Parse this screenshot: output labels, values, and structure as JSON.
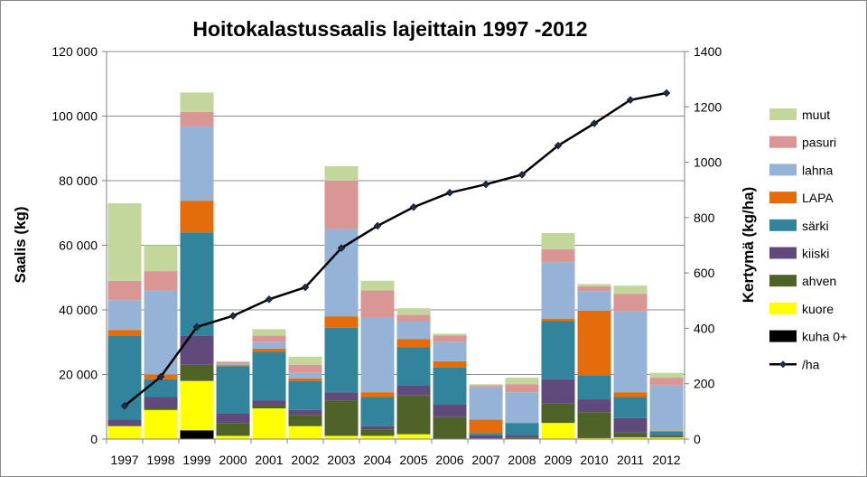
{
  "chart_data": {
    "type": "bar",
    "stacked": true,
    "title": "Hoitokalastussaalis lajeittain 1997 -2012",
    "ylabel": "Saalis (kg)",
    "y2label": "Kertymä (kg/ha)",
    "categories": [
      "1997",
      "1998",
      "1999",
      "2000",
      "2001",
      "2002",
      "2003",
      "2004",
      "2005",
      "2006",
      "2007",
      "2008",
      "2009",
      "2010",
      "2011",
      "2012"
    ],
    "ylim": [
      0,
      120000
    ],
    "y2lim": [
      0,
      1400
    ],
    "yticks": [
      "0",
      "20 000",
      "40 000",
      "60 000",
      "80 000",
      "100 000",
      "120 000"
    ],
    "y2ticks": [
      "0",
      "200",
      "400",
      "600",
      "800",
      "1000",
      "1200",
      "1400"
    ],
    "grid": true,
    "legend_position": "right",
    "series": [
      {
        "name": "kuha 0+",
        "color": "#000000",
        "values": [
          0,
          0,
          2700,
          0,
          0,
          0,
          0,
          0,
          0,
          0,
          0,
          0,
          0,
          0,
          0,
          0
        ]
      },
      {
        "name": "kuore",
        "color": "#ffff00",
        "values": [
          4000,
          9000,
          15300,
          1000,
          9500,
          4000,
          1000,
          1000,
          1500,
          0,
          0,
          0,
          5000,
          300,
          500,
          500
        ]
      },
      {
        "name": "ahven",
        "color": "#4f6228",
        "values": [
          0,
          500,
          5000,
          4000,
          1000,
          3500,
          11000,
          2000,
          12000,
          6800,
          200,
          500,
          6000,
          8000,
          1500,
          500
        ]
      },
      {
        "name": "kiiski",
        "color": "#604a7b",
        "values": [
          2000,
          3500,
          9000,
          3000,
          1500,
          1500,
          2500,
          1000,
          3000,
          4000,
          1000,
          800,
          7500,
          4000,
          4500,
          300
        ]
      },
      {
        "name": "särki",
        "color": "#31849b",
        "values": [
          26000,
          5500,
          32000,
          14500,
          15000,
          9000,
          20000,
          9000,
          12000,
          11500,
          700,
          3700,
          18000,
          7500,
          6500,
          1000
        ]
      },
      {
        "name": "LAPA",
        "color": "#e46c0a",
        "values": [
          1800,
          1500,
          9800,
          300,
          1000,
          800,
          3500,
          1500,
          2500,
          1800,
          4100,
          0,
          800,
          20000,
          1500,
          300
        ]
      },
      {
        "name": "lahna",
        "color": "#95b3d7",
        "values": [
          9200,
          26000,
          23000,
          600,
          2000,
          1700,
          27000,
          23000,
          5500,
          6000,
          10000,
          9500,
          17500,
          6000,
          25000,
          14000
        ]
      },
      {
        "name": "pasuri",
        "color": "#d99694",
        "values": [
          6000,
          6000,
          4500,
          400,
          2000,
          2500,
          15000,
          8500,
          2000,
          2000,
          500,
          2500,
          4000,
          1500,
          5500,
          2400
        ]
      },
      {
        "name": "muut",
        "color": "#c3d69b",
        "values": [
          24000,
          8000,
          6000,
          300,
          2000,
          2500,
          4500,
          3000,
          2000,
          500,
          500,
          2000,
          5000,
          700,
          2500,
          1500
        ]
      }
    ],
    "line": {
      "name": "/ha",
      "color": "#000000",
      "axis": "secondary",
      "values": [
        120,
        225,
        405,
        445,
        505,
        548,
        690,
        770,
        838,
        890,
        920,
        955,
        1060,
        1140,
        1225,
        1250
      ]
    }
  }
}
